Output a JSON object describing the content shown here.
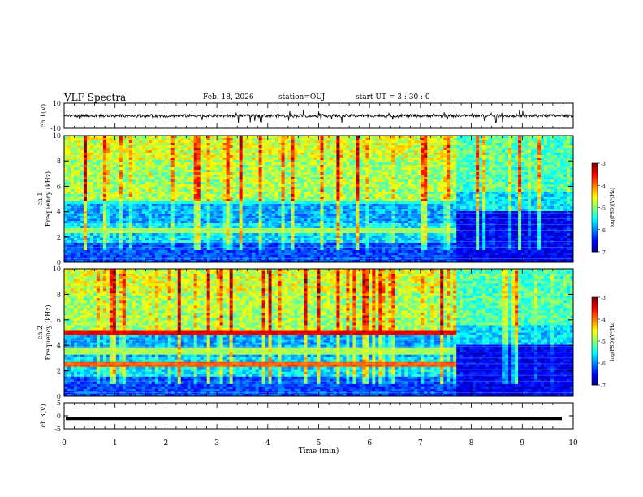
{
  "header": {
    "title": "VLF Spectra",
    "date": "Feb. 18, 2026",
    "station": "station=OUJ",
    "start": "start  UT  =   3  : 30 : 0"
  },
  "chart_data": {
    "type": "heatmap",
    "x_axis": {
      "label": "Time  (min)",
      "range": [
        0,
        10
      ],
      "ticks": [
        "0",
        "1",
        "2",
        "3",
        "4",
        "5",
        "6",
        "7",
        "8",
        "9",
        "10"
      ]
    },
    "panels": [
      {
        "kind": "waveform",
        "ylabel": "ch.1(V)",
        "ylim": [
          -10,
          10
        ],
        "ticks": [
          "10",
          "-10"
        ],
        "baseline": 0,
        "description_level": "noisy signal around 0 V with sparse spikes"
      },
      {
        "kind": "spectrogram",
        "ylabel": "ch.1\nFrequency  (kHz)",
        "ylim": [
          0,
          10
        ],
        "ticks": [
          "0",
          "2",
          "4",
          "6",
          "8",
          "10"
        ],
        "bands": [
          {
            "f_khz": 2.5,
            "until_min": 7.7,
            "level": -5.0
          },
          {
            "f_khz": 4.8,
            "until_min": 7.7,
            "level": -5.6
          }
        ],
        "quiet_after_min": 7.7
      },
      {
        "kind": "spectrogram",
        "ylabel": "ch.2\nFrequency  (kHz)",
        "ylim": [
          0,
          10
        ],
        "ticks": [
          "0",
          "2",
          "4",
          "6",
          "8",
          "10"
        ],
        "bands": [
          {
            "f_khz": 2.5,
            "until_min": 7.7,
            "level": -4.0
          },
          {
            "f_khz": 5.0,
            "until_min": 7.7,
            "level": -3.6
          },
          {
            "f_khz": 3.5,
            "until_min": 7.7,
            "level": -5.0
          }
        ],
        "quiet_after_min": 7.7
      },
      {
        "kind": "waveform",
        "ylabel": "ch.3(V)",
        "ylim": [
          -5,
          5
        ],
        "ticks": [
          "5",
          "0",
          "-5"
        ],
        "baseline": -1.0,
        "description_level": "flat thick line near -1 V"
      }
    ],
    "colorbar": {
      "label": "log(PSD)(V²/Hz)",
      "range": [
        -7,
        -3
      ],
      "ticks": [
        "-3",
        "-4",
        "-5",
        "-6",
        "-7"
      ]
    }
  }
}
